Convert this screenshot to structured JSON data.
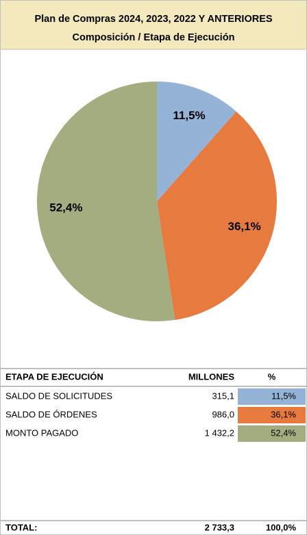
{
  "chart_data": {
    "type": "pie",
    "title": "Plan de Compras 2024, 2023, 2022 Y ANTERIORES",
    "subtitle": "Composición / Etapa de Ejecución",
    "categories": [
      "SALDO DE SOLICITUDES",
      "SALDO DE ÓRDENES",
      "MONTO PAGADO"
    ],
    "values": [
      11.5,
      36.1,
      52.4
    ],
    "value_labels": [
      "11,5%",
      "36,1%",
      "52,4%"
    ],
    "colors": [
      "#95b3d7",
      "#e77a3e",
      "#a3ad80"
    ]
  },
  "table": {
    "headers": [
      "ETAPA DE EJECUCIÓN",
      "MILLONES",
      "%"
    ],
    "millones": [
      "315,1",
      "986,0",
      "1 432,2"
    ],
    "total": [
      "TOTAL:",
      "2 733,3",
      "100,0%"
    ]
  }
}
